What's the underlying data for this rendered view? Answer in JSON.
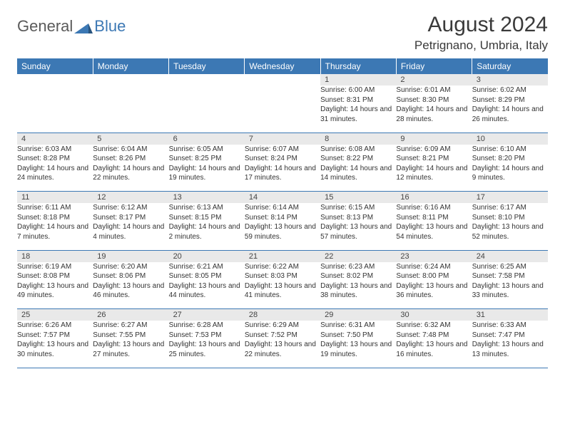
{
  "brand": {
    "general": "General",
    "blue": "Blue"
  },
  "header": {
    "month_title": "August 2024",
    "location": "Petrignano, Umbria, Italy"
  },
  "colors": {
    "accent": "#3c78b4",
    "header_gray": "#e9e9e9",
    "text": "#333333",
    "background": "#ffffff"
  },
  "calendar": {
    "type": "table",
    "columns": [
      "Sunday",
      "Monday",
      "Tuesday",
      "Wednesday",
      "Thursday",
      "Friday",
      "Saturday"
    ],
    "weeks": [
      [
        null,
        null,
        null,
        null,
        {
          "n": "1",
          "sunrise": "6:00 AM",
          "sunset": "8:31 PM",
          "daylight": "14 hours and 31 minutes."
        },
        {
          "n": "2",
          "sunrise": "6:01 AM",
          "sunset": "8:30 PM",
          "daylight": "14 hours and 28 minutes."
        },
        {
          "n": "3",
          "sunrise": "6:02 AM",
          "sunset": "8:29 PM",
          "daylight": "14 hours and 26 minutes."
        }
      ],
      [
        {
          "n": "4",
          "sunrise": "6:03 AM",
          "sunset": "8:28 PM",
          "daylight": "14 hours and 24 minutes."
        },
        {
          "n": "5",
          "sunrise": "6:04 AM",
          "sunset": "8:26 PM",
          "daylight": "14 hours and 22 minutes."
        },
        {
          "n": "6",
          "sunrise": "6:05 AM",
          "sunset": "8:25 PM",
          "daylight": "14 hours and 19 minutes."
        },
        {
          "n": "7",
          "sunrise": "6:07 AM",
          "sunset": "8:24 PM",
          "daylight": "14 hours and 17 minutes."
        },
        {
          "n": "8",
          "sunrise": "6:08 AM",
          "sunset": "8:22 PM",
          "daylight": "14 hours and 14 minutes."
        },
        {
          "n": "9",
          "sunrise": "6:09 AM",
          "sunset": "8:21 PM",
          "daylight": "14 hours and 12 minutes."
        },
        {
          "n": "10",
          "sunrise": "6:10 AM",
          "sunset": "8:20 PM",
          "daylight": "14 hours and 9 minutes."
        }
      ],
      [
        {
          "n": "11",
          "sunrise": "6:11 AM",
          "sunset": "8:18 PM",
          "daylight": "14 hours and 7 minutes."
        },
        {
          "n": "12",
          "sunrise": "6:12 AM",
          "sunset": "8:17 PM",
          "daylight": "14 hours and 4 minutes."
        },
        {
          "n": "13",
          "sunrise": "6:13 AM",
          "sunset": "8:15 PM",
          "daylight": "14 hours and 2 minutes."
        },
        {
          "n": "14",
          "sunrise": "6:14 AM",
          "sunset": "8:14 PM",
          "daylight": "13 hours and 59 minutes."
        },
        {
          "n": "15",
          "sunrise": "6:15 AM",
          "sunset": "8:13 PM",
          "daylight": "13 hours and 57 minutes."
        },
        {
          "n": "16",
          "sunrise": "6:16 AM",
          "sunset": "8:11 PM",
          "daylight": "13 hours and 54 minutes."
        },
        {
          "n": "17",
          "sunrise": "6:17 AM",
          "sunset": "8:10 PM",
          "daylight": "13 hours and 52 minutes."
        }
      ],
      [
        {
          "n": "18",
          "sunrise": "6:19 AM",
          "sunset": "8:08 PM",
          "daylight": "13 hours and 49 minutes."
        },
        {
          "n": "19",
          "sunrise": "6:20 AM",
          "sunset": "8:06 PM",
          "daylight": "13 hours and 46 minutes."
        },
        {
          "n": "20",
          "sunrise": "6:21 AM",
          "sunset": "8:05 PM",
          "daylight": "13 hours and 44 minutes."
        },
        {
          "n": "21",
          "sunrise": "6:22 AM",
          "sunset": "8:03 PM",
          "daylight": "13 hours and 41 minutes."
        },
        {
          "n": "22",
          "sunrise": "6:23 AM",
          "sunset": "8:02 PM",
          "daylight": "13 hours and 38 minutes."
        },
        {
          "n": "23",
          "sunrise": "6:24 AM",
          "sunset": "8:00 PM",
          "daylight": "13 hours and 36 minutes."
        },
        {
          "n": "24",
          "sunrise": "6:25 AM",
          "sunset": "7:58 PM",
          "daylight": "13 hours and 33 minutes."
        }
      ],
      [
        {
          "n": "25",
          "sunrise": "6:26 AM",
          "sunset": "7:57 PM",
          "daylight": "13 hours and 30 minutes."
        },
        {
          "n": "26",
          "sunrise": "6:27 AM",
          "sunset": "7:55 PM",
          "daylight": "13 hours and 27 minutes."
        },
        {
          "n": "27",
          "sunrise": "6:28 AM",
          "sunset": "7:53 PM",
          "daylight": "13 hours and 25 minutes."
        },
        {
          "n": "28",
          "sunrise": "6:29 AM",
          "sunset": "7:52 PM",
          "daylight": "13 hours and 22 minutes."
        },
        {
          "n": "29",
          "sunrise": "6:31 AM",
          "sunset": "7:50 PM",
          "daylight": "13 hours and 19 minutes."
        },
        {
          "n": "30",
          "sunrise": "6:32 AM",
          "sunset": "7:48 PM",
          "daylight": "13 hours and 16 minutes."
        },
        {
          "n": "31",
          "sunrise": "6:33 AM",
          "sunset": "7:47 PM",
          "daylight": "13 hours and 13 minutes."
        }
      ]
    ],
    "labels": {
      "sunrise_prefix": "Sunrise: ",
      "sunset_prefix": "Sunset: ",
      "daylight_prefix": "Daylight: "
    }
  }
}
